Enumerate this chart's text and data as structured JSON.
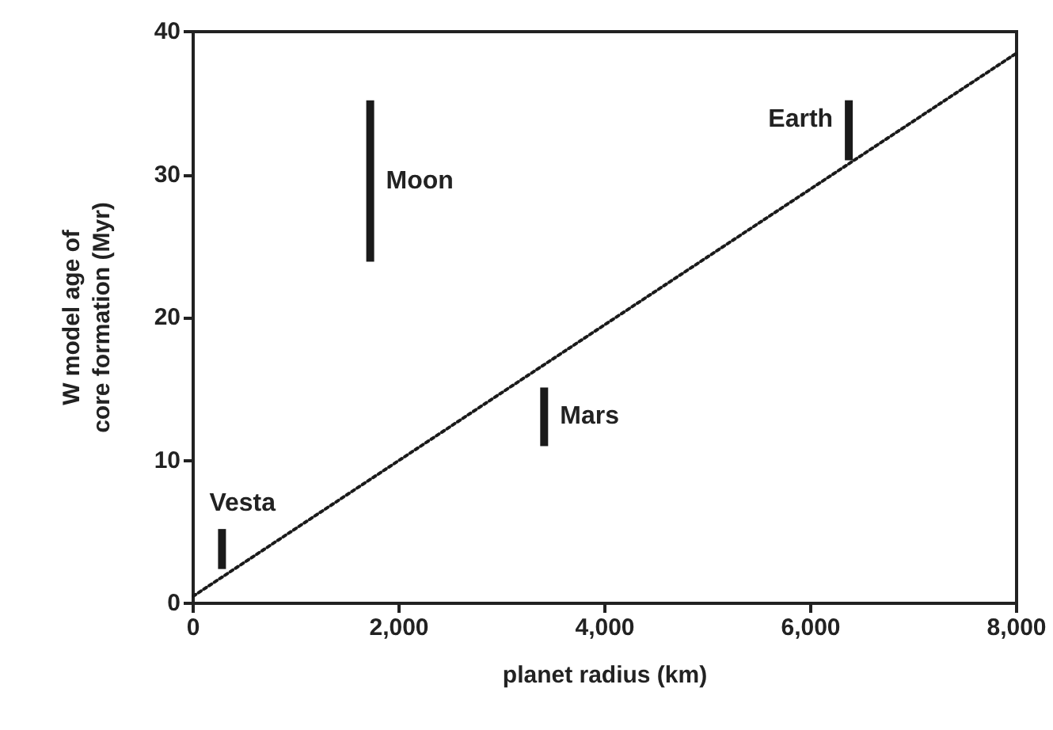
{
  "chart_data": {
    "type": "bar",
    "xlabel": "planet radius (km)",
    "ylabel": "W model age of\ncore formation (Myr)",
    "x": [
      280,
      1720,
      3410,
      6370
    ],
    "series": [
      {
        "color": "#1a1a1a",
        "base": [
          2.4,
          23.9,
          11.0,
          31.0
        ],
        "values": [
          2.8,
          11.3,
          4.1,
          4.2
        ]
      },
      {
        "type": "line",
        "color": "#1a1a1a",
        "line_style": "dotted",
        "x": [
          0,
          8000
        ],
        "values": [
          0.5,
          38.5
        ]
      }
    ],
    "annotations": [
      "Vesta",
      "Moon",
      "Mars",
      "Earth"
    ],
    "xlim": [
      0,
      8000
    ],
    "ylim": [
      0,
      40
    ],
    "xticks": [
      0,
      {
        "value": 2000,
        "label": "2,000"
      },
      {
        "value": 4000,
        "label": "4,000"
      },
      {
        "value": 6000,
        "label": "6,000"
      },
      {
        "value": 8000,
        "label": "8,000"
      }
    ],
    "yticks": [
      0,
      10,
      20,
      30,
      40
    ],
    "grid": false
  }
}
